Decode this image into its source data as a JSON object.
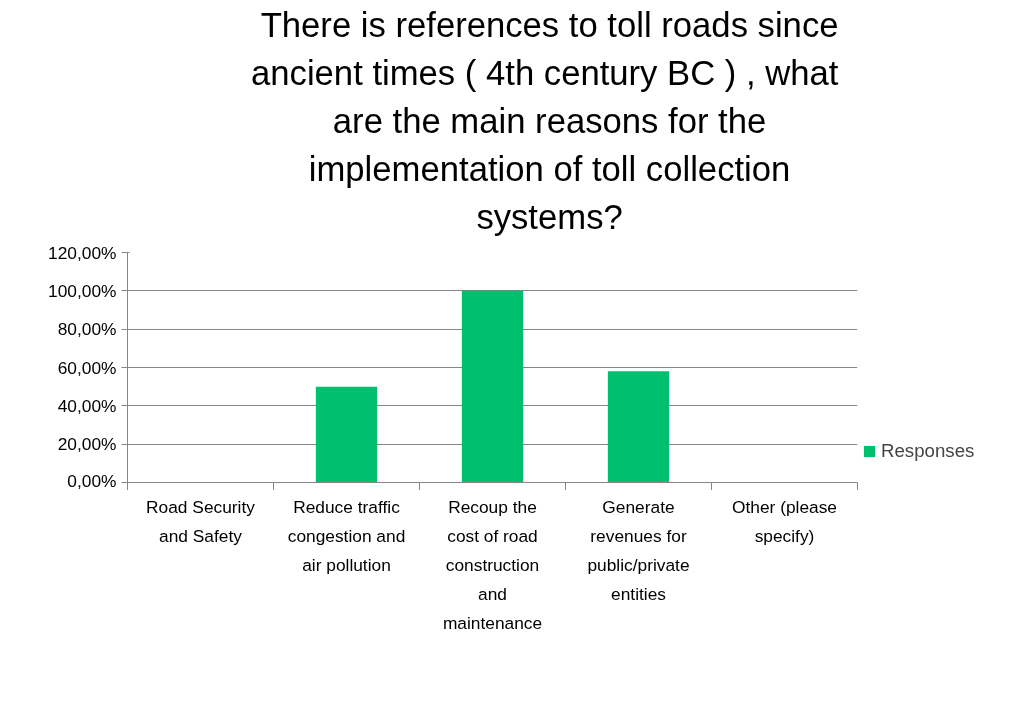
{
  "chart_data": {
    "type": "bar",
    "title": "There is references to toll roads since ancient times  ( 4th century BC ) , what are the main reasons for the implementation of toll collection systems?",
    "categories": [
      "Road Security and Safety",
      "Reduce traffic congestion and air pollution",
      "Recoup the cost of road construction and maintenance",
      "Generate revenues for public/private entities",
      "Other (please specify)"
    ],
    "series": [
      {
        "name": "Responses",
        "color": "#00bf6f",
        "values": [
          0,
          50,
          100,
          58,
          0
        ]
      }
    ],
    "ylim": [
      0,
      120
    ],
    "yticks": [
      {
        "value": 0,
        "label": "0,00%"
      },
      {
        "value": 20,
        "label": "20,00%"
      },
      {
        "value": 40,
        "label": "40,00%"
      },
      {
        "value": 60,
        "label": "60,00%"
      },
      {
        "value": 80,
        "label": "80,00%"
      },
      {
        "value": 100,
        "label": "100,00%"
      },
      {
        "value": 120,
        "label": "120,00%"
      }
    ],
    "grid": "y",
    "legend": "right"
  }
}
